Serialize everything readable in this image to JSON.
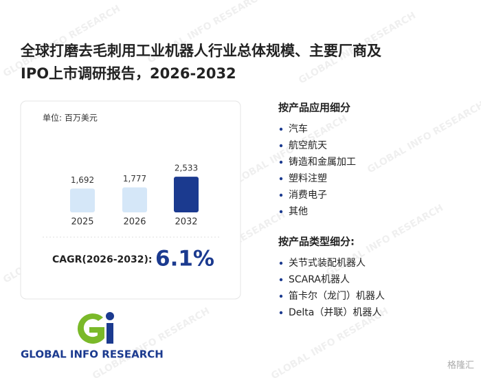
{
  "title_lines": [
    "全球打磨去毛刺用工业机器人行业总体规模、主要厂商及",
    "IPO上市调研报告，2026-2032"
  ],
  "chart_data": {
    "type": "bar",
    "unit": "单位: 百万美元",
    "categories": [
      "2025",
      "2026",
      "2032"
    ],
    "values": [
      1692,
      1777,
      2533
    ],
    "value_labels": [
      "1,692",
      "1,777",
      "2,533"
    ],
    "colors": [
      "#d5e7f8",
      "#d5e7f8",
      "#1b3a8f"
    ],
    "cagr_label": "CAGR(2026-2032):",
    "cagr": "6.1%"
  },
  "sections": [
    {
      "heading": "按产品应用细分",
      "items": [
        "汽车",
        "航空航天",
        "铸造和金属加工",
        "塑料注塑",
        "消费电子",
        "其他"
      ]
    },
    {
      "heading": "按产品类型细分:",
      "items": [
        "关节式装配机器人",
        "SCARA机器人",
        "笛卡尔（龙门）机器人",
        "Delta（并联）机器人"
      ]
    }
  ],
  "logo": {
    "text": "GLOBAL INFO RESEARCH"
  },
  "source_mark": "格隆汇"
}
